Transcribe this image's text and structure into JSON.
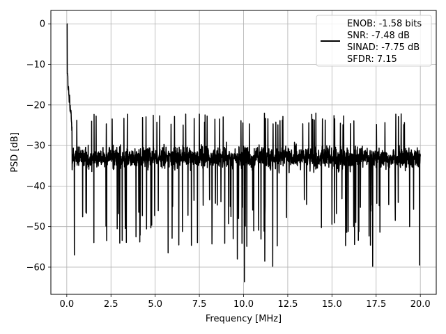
{
  "chart_data": {
    "type": "line",
    "xlabel": "Frequency [MHz]",
    "ylabel": "PSD [dB]",
    "xlim": [
      -0.9,
      20.9
    ],
    "ylim": [
      -66.7,
      3.3
    ],
    "xticks": [
      0.0,
      2.5,
      5.0,
      7.5,
      10.0,
      12.5,
      15.0,
      17.5,
      20.0
    ],
    "xtick_labels": [
      "0.0",
      "2.5",
      "5.0",
      "7.5",
      "10.0",
      "12.5",
      "15.0",
      "17.5",
      "20.0"
    ],
    "yticks": [
      0,
      -10,
      -20,
      -30,
      -40,
      -50,
      -60
    ],
    "ytick_labels": [
      "0",
      "−10",
      "−20",
      "−30",
      "−40",
      "−50",
      "−60"
    ],
    "grid": true,
    "legend_position": "top-right",
    "legend_lines": [
      "ENOB: -1.58 bits",
      "SNR: -7.48 dB",
      "SINAD: -7.75 dB",
      "SFDR: 7.15"
    ],
    "series": [
      {
        "color": "#000000",
        "peak": {
          "x": 0.0,
          "y": 0.0
        },
        "x_range": [
          0.0,
          20.0
        ],
        "noise_floor_mean": -33,
        "noise_upper": -22,
        "noise_lower": -45,
        "deep_dips": [
          {
            "x": 0.43,
            "y": -57.0
          },
          {
            "x": 5.73,
            "y": -56.5
          },
          {
            "x": 9.65,
            "y": -58.0
          },
          {
            "x": 10.05,
            "y": -63.6
          },
          {
            "x": 11.2,
            "y": -58.5
          },
          {
            "x": 11.65,
            "y": -59.8
          },
          {
            "x": 17.3,
            "y": -59.8
          },
          {
            "x": 19.95,
            "y": -59.5
          }
        ]
      }
    ]
  }
}
